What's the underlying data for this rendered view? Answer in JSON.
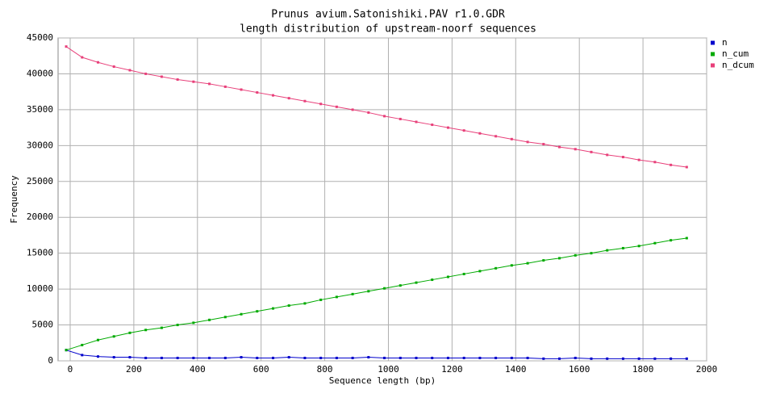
{
  "chart_data": {
    "type": "line",
    "title": "Prunus avium.Satonishiki.PAV r1.0.GDR",
    "subtitle": "length distribution of upstream-noorf sequences",
    "x_label": "Sequence length (bp)",
    "y_label": "Frequency",
    "x": [
      -12.5,
      37.5,
      87.5,
      137.5,
      187.5,
      237.5,
      287.5,
      337.5,
      387.5,
      437.5,
      487.5,
      537.5,
      587.5,
      637.5,
      687.5,
      737.5,
      787.5,
      837.5,
      887.5,
      937.5,
      987.5,
      1037.5,
      1087.5,
      1137.5,
      1187.5,
      1237.5,
      1287.5,
      1337.5,
      1387.5,
      1437.5,
      1487.5,
      1537.5,
      1587.5,
      1637.5,
      1687.5,
      1737.5,
      1787.5,
      1837.5,
      1887.5,
      1937.5
    ],
    "series": [
      {
        "name": "n",
        "color": "#0000cc",
        "values": [
          1500,
          800,
          600,
          500,
          500,
          400,
          400,
          400,
          400,
          400,
          400,
          500,
          400,
          400,
          500,
          400,
          400,
          400,
          400,
          500,
          400,
          400,
          400,
          400,
          400,
          400,
          400,
          400,
          400,
          400,
          300,
          300,
          400,
          300,
          300,
          300,
          300,
          300,
          300,
          300
        ]
      },
      {
        "name": "n_cum",
        "color": "#00aa00",
        "values": [
          1500,
          2200,
          2900,
          3400,
          3900,
          4300,
          4600,
          5000,
          5300,
          5700,
          6100,
          6500,
          6900,
          7300,
          7700,
          8000,
          8500,
          8900,
          9300,
          9700,
          10100,
          10500,
          10900,
          11300,
          11700,
          12100,
          12500,
          12900,
          13300,
          13600,
          14000,
          14300,
          14700,
          15000,
          15400,
          15700,
          16000,
          16400,
          16800,
          17100
        ]
      },
      {
        "name": "n_dcum",
        "color": "#e8407a",
        "values": [
          43800,
          42300,
          41600,
          41000,
          40500,
          40000,
          39600,
          39200,
          38900,
          38600,
          38200,
          37800,
          37400,
          37000,
          36600,
          36200,
          35800,
          35400,
          35000,
          34600,
          34100,
          33700,
          33300,
          32900,
          32500,
          32100,
          31700,
          31300,
          30900,
          30500,
          30200,
          29800,
          29500,
          29100,
          28700,
          28400,
          28000,
          27700,
          27300,
          27000
        ]
      }
    ],
    "xlim": [
      -38,
      2000
    ],
    "ylim": [
      0,
      45000
    ],
    "xticks": [
      0,
      200,
      400,
      600,
      800,
      1000,
      1200,
      1400,
      1600,
      1800,
      2000
    ],
    "yticks": [
      0,
      5000,
      10000,
      15000,
      20000,
      25000,
      30000,
      35000,
      40000,
      45000
    ],
    "grid": true,
    "legend": "right"
  }
}
